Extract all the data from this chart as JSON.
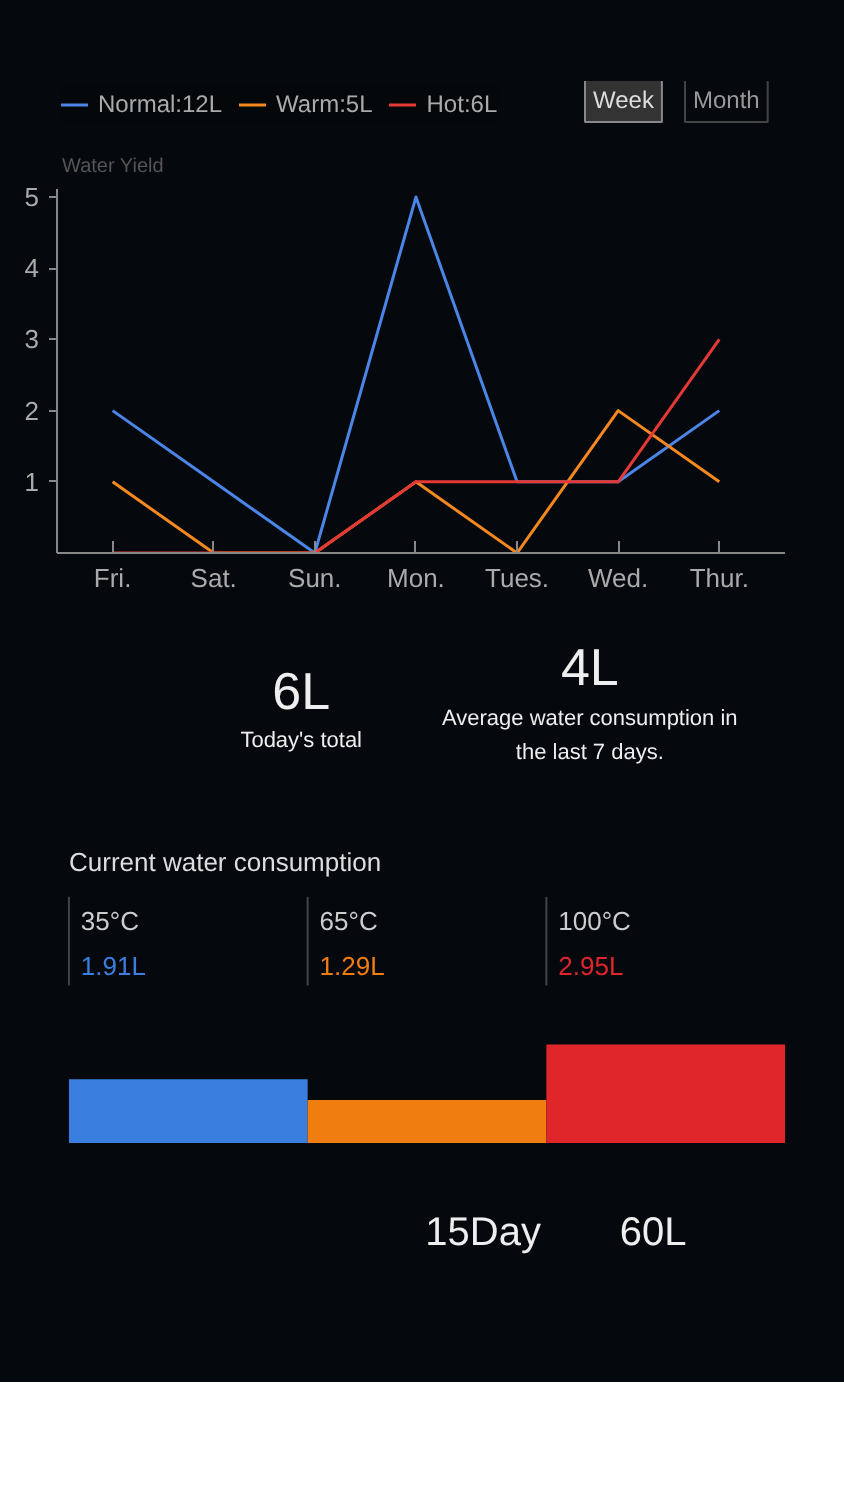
{
  "chart_data": [
    {
      "type": "line",
      "ylabel": "Water Yield",
      "categories": [
        "Fri.",
        "Sat.",
        "Sun.",
        "Mon.",
        "Tues.",
        "Wed.",
        "Thur."
      ],
      "ylim": [
        0,
        5.1
      ],
      "yticks": [
        1,
        2,
        3,
        4,
        5
      ],
      "grid": false,
      "legend": "top left",
      "annotations": [
        "Week",
        "Month"
      ],
      "series": [
        {
          "name": "Normal:12L",
          "color": "#4a86e8",
          "values": [
            2,
            1,
            0,
            5,
            1,
            1,
            2
          ]
        },
        {
          "name": "Warm:5L",
          "color": "#f5891f",
          "values": [
            1,
            0,
            0,
            1,
            0,
            2,
            1
          ]
        },
        {
          "name": "Hot:6L",
          "color": "#e53935",
          "values": [
            0,
            0,
            0,
            1,
            1,
            1,
            3
          ]
        }
      ]
    },
    {
      "type": "other",
      "annotations": [
        "6L",
        "Today's total",
        "4L",
        "Average water consumption in the last 7 days."
      ]
    },
    {
      "type": "bar",
      "title": "Current water consumption",
      "categories": [
        "35°C",
        "65°C",
        "100°C"
      ],
      "values": [
        1.91,
        1.29,
        2.95
      ],
      "colors": [
        "#3a7fe0",
        "#f07d10",
        "#e0262b"
      ],
      "value_labels": [
        "1.91L",
        "1.29L",
        "2.95L"
      ]
    },
    {
      "type": "other",
      "annotations": [
        "15Day",
        "60L"
      ]
    }
  ]
}
